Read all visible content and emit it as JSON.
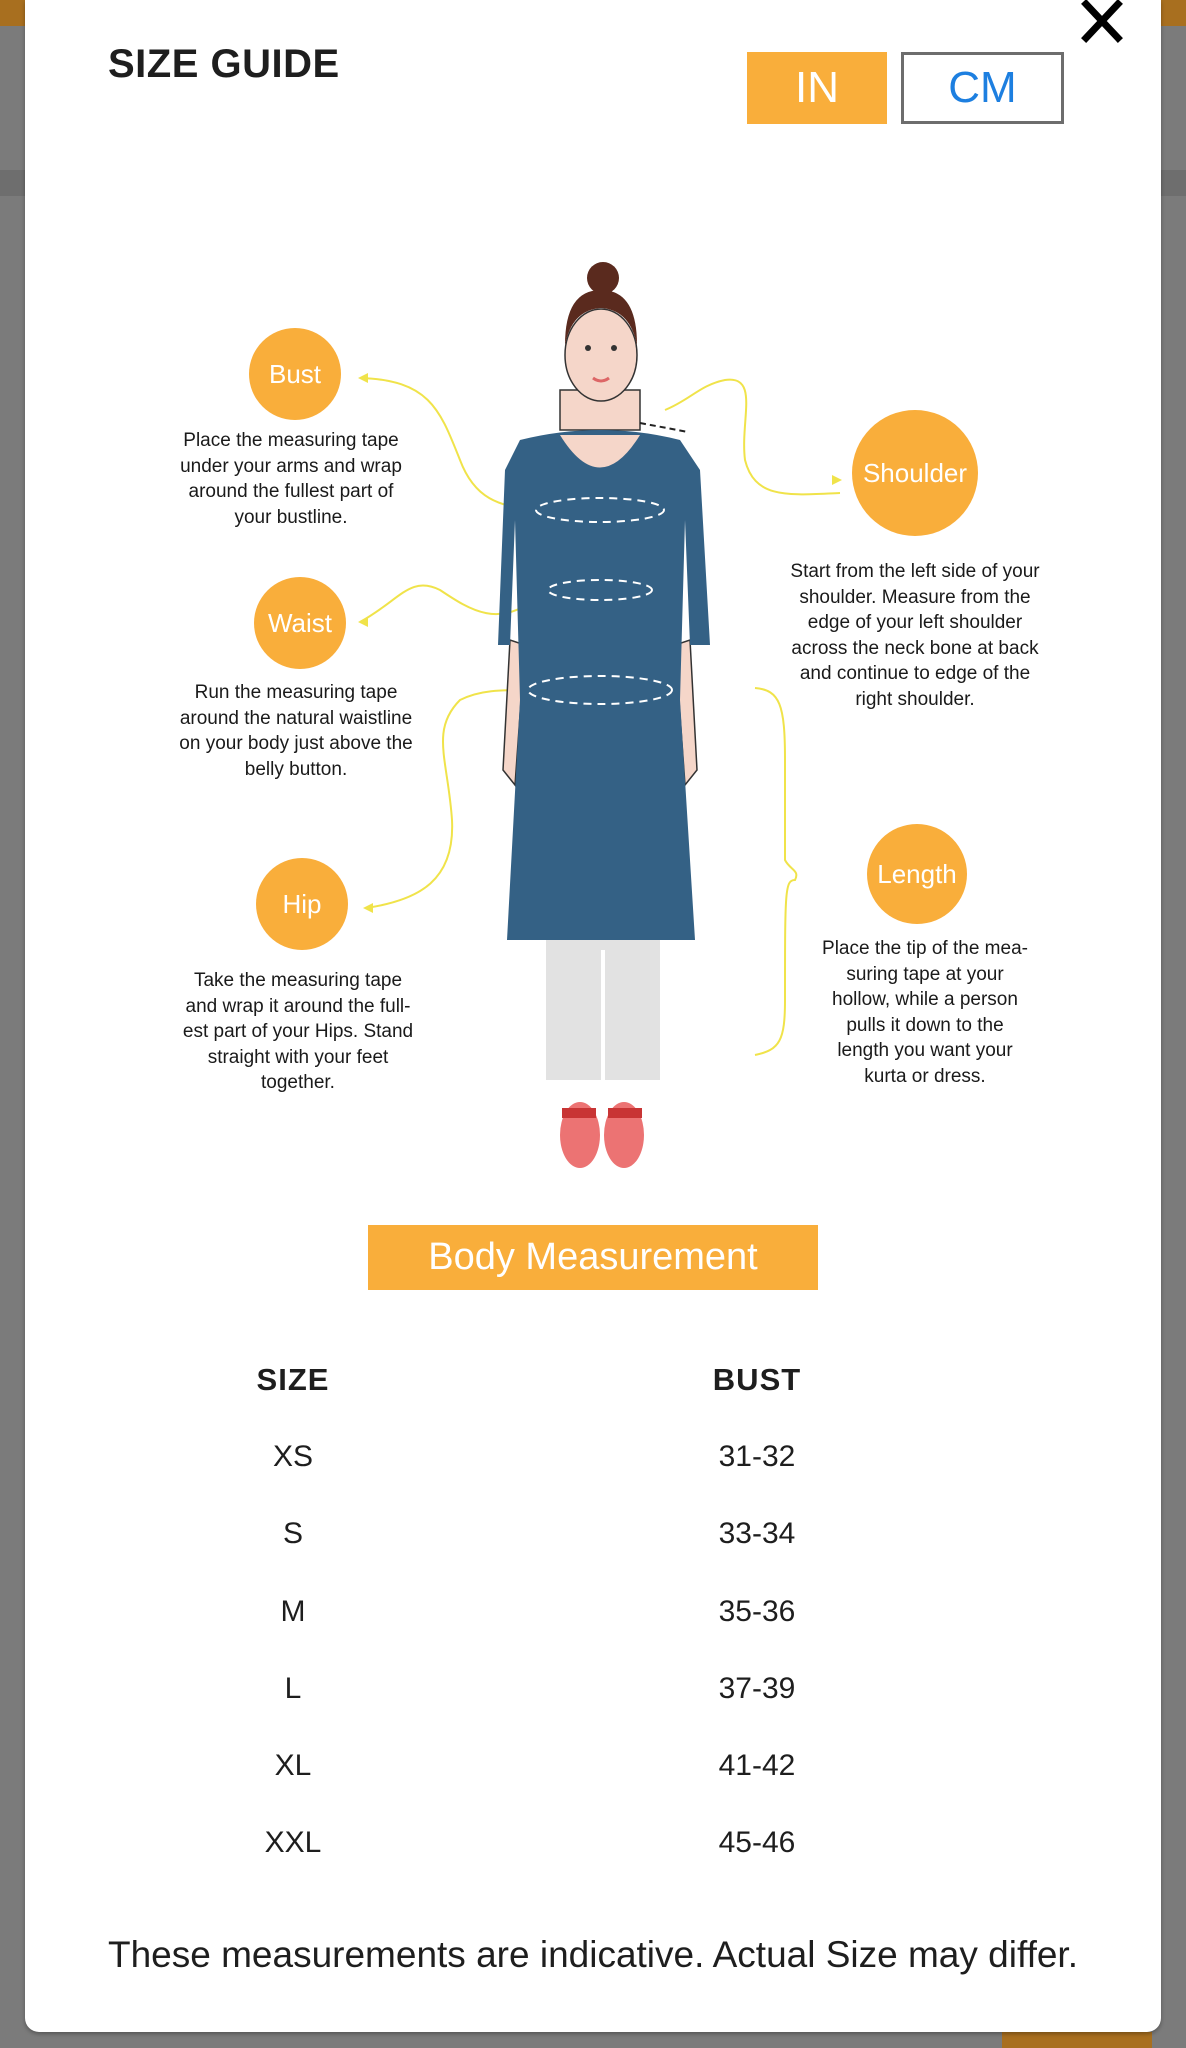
{
  "header": {
    "title": "SIZE GUIDE",
    "close_icon": "close-icon",
    "units": [
      {
        "label": "IN",
        "active": true
      },
      {
        "label": "CM",
        "active": false
      }
    ]
  },
  "colors": {
    "accent": "#f9ae3b",
    "cm_text": "#1d7fe0",
    "dress": "#346185",
    "connector": "#f0e34a"
  },
  "guide": {
    "bust": {
      "label": "Bust",
      "text": "Place the measuring tape\nunder your arms and wrap\naround the fullest part of\nyour bustline."
    },
    "waist": {
      "label": "Waist",
      "text": "Run the measuring tape\naround the natural waistline\non your body just above the\nbelly button."
    },
    "hip": {
      "label": "Hip",
      "text": "Take the measuring tape\nand wrap it around the full-\nest part of your Hips. Stand\nstraight with your feet\ntogether."
    },
    "shoulder": {
      "label": "Shoulder",
      "text": "Start from the left side of your\nshoulder. Measure from the\nedge of your left shoulder\nacross the neck bone at back\nand continue to edge of the\nright shoulder."
    },
    "length": {
      "label": "Length",
      "text": "Place the tip of the mea-\nsuring tape at your\nhollow, while a person\npulls it down to the\nlength you want your\nkurta or dress."
    }
  },
  "table": {
    "title": "Body Measurement",
    "columns": [
      "SIZE",
      "BUST"
    ],
    "rows": [
      [
        "XS",
        "31-32"
      ],
      [
        "S",
        "33-34"
      ],
      [
        "M",
        "35-36"
      ],
      [
        "L",
        "37-39"
      ],
      [
        "XL",
        "41-42"
      ],
      [
        "XXL",
        "45-46"
      ]
    ]
  },
  "footer": "These measurements are indicative. Actual Size may differ."
}
